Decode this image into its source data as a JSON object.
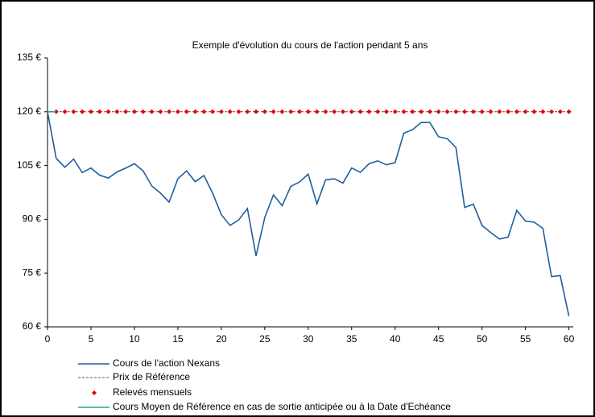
{
  "chart_data": {
    "type": "line",
    "title": "Exemple d'évolution  du cours de  l'action pendant   5 ans",
    "xlim": [
      0,
      60.5
    ],
    "xticks": [
      0,
      5,
      10,
      15,
      20,
      25,
      30,
      35,
      40,
      45,
      50,
      55,
      60
    ],
    "ylim": [
      60,
      135
    ],
    "yticks": [
      {
        "value": 60,
        "label": "60 €"
      },
      {
        "value": 75,
        "label": "75 €"
      },
      {
        "value": 90,
        "label": "90 €"
      },
      {
        "value": 105,
        "label": "105 €"
      },
      {
        "value": 120,
        "label": "120 €"
      },
      {
        "value": 135,
        "label": "135 €"
      }
    ],
    "series": [
      {
        "name": "Cours de l'action Nexans",
        "color": "#1f5f9f",
        "style": "line",
        "x": [
          0,
          1,
          2,
          3,
          4,
          5,
          6,
          7,
          8,
          9,
          10,
          11,
          12,
          13,
          14,
          15,
          16,
          17,
          18,
          19,
          20,
          21,
          22,
          23,
          24,
          25,
          26,
          27,
          28,
          29,
          30,
          31,
          32,
          33,
          34,
          35,
          36,
          37,
          38,
          39,
          40,
          41,
          42,
          43,
          44,
          45,
          46,
          47,
          48,
          49,
          50,
          51,
          52,
          53,
          54,
          55,
          56,
          57,
          58,
          59,
          60
        ],
        "values": [
          120,
          107,
          104.5,
          106.8,
          103,
          104.3,
          102.3,
          101.5,
          103.2,
          104.3,
          105.5,
          103.5,
          99.3,
          97.3,
          94.8,
          101.3,
          103.5,
          100.5,
          102.2,
          97.3,
          91.3,
          88.3,
          89.8,
          93,
          79.8,
          90.5,
          96.8,
          93.8,
          99.2,
          100.4,
          102.6,
          94.3,
          101,
          101.3,
          100.1,
          104.3,
          103.1,
          105.5,
          106.3,
          105.2,
          105.8,
          114,
          115,
          117,
          117,
          113,
          112.5,
          110,
          93.3,
          94.2,
          88.3,
          86.3,
          84.5,
          85,
          92.5,
          89.5,
          89.2,
          87.5,
          74,
          74.3,
          63
        ]
      },
      {
        "name": "Prix de Référence",
        "color": "#555555",
        "style": "dashed",
        "x": [
          0,
          60
        ],
        "values": [
          120,
          120
        ]
      },
      {
        "name": "Relevés mensuels",
        "color": "#e8000b",
        "style": "markers",
        "x": [
          1,
          2,
          3,
          4,
          5,
          6,
          7,
          8,
          9,
          10,
          11,
          12,
          13,
          14,
          15,
          16,
          17,
          18,
          19,
          20,
          21,
          22,
          23,
          24,
          25,
          26,
          27,
          28,
          29,
          30,
          31,
          32,
          33,
          34,
          35,
          36,
          37,
          38,
          39,
          40,
          41,
          42,
          43,
          44,
          45,
          46,
          47,
          48,
          49,
          50,
          51,
          52,
          53,
          54,
          55,
          56,
          57,
          58,
          59,
          60
        ],
        "values": [
          120,
          120,
          120,
          120,
          120,
          120,
          120,
          120,
          120,
          120,
          120,
          120,
          120,
          120,
          120,
          120,
          120,
          120,
          120,
          120,
          120,
          120,
          120,
          120,
          120,
          120,
          120,
          120,
          120,
          120,
          120,
          120,
          120,
          120,
          120,
          120,
          120,
          120,
          120,
          120,
          120,
          120,
          120,
          120,
          120,
          120,
          120,
          120,
          120,
          120,
          120,
          120,
          120,
          120,
          120,
          120,
          120,
          120,
          120,
          120
        ]
      },
      {
        "name": "Cours Moyen de Référence en cas de sortie anticipée ou à la Date d'Echéance",
        "color": "#1aaa8a",
        "style": "line",
        "x": [
          0,
          1
        ],
        "values": [
          120,
          120
        ]
      }
    ]
  }
}
